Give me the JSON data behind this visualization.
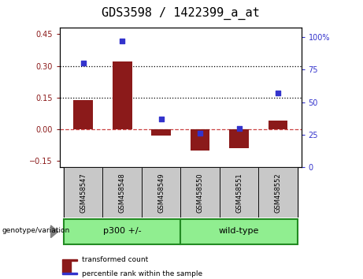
{
  "title": "GDS3598 / 1422399_a_at",
  "samples": [
    "GSM458547",
    "GSM458548",
    "GSM458549",
    "GSM458550",
    "GSM458551",
    "GSM458552"
  ],
  "transformed_count": [
    0.14,
    0.32,
    -0.03,
    -0.1,
    -0.09,
    0.04
  ],
  "percentile_rank": [
    80,
    97,
    37,
    26,
    30,
    57
  ],
  "group_border_color": "#228B22",
  "bar_color": "#8B1A1A",
  "scatter_color": "#3333CC",
  "dashed_zero_color": "#CC4444",
  "dotted_line_color": "#000000",
  "left_ylim": [
    -0.18,
    0.48
  ],
  "left_yticks": [
    -0.15,
    0.0,
    0.15,
    0.3,
    0.45
  ],
  "right_ylim": [
    0,
    107
  ],
  "right_yticks": [
    0,
    25,
    50,
    75,
    100
  ],
  "right_yticklabels": [
    "0",
    "25",
    "50",
    "75",
    "100%"
  ],
  "xlabel_area_color": "#C8C8C8",
  "group_color": "#90EE90",
  "genotype_label": "genotype/variation",
  "legend_items": [
    "transformed count",
    "percentile rank within the sample"
  ],
  "title_fontsize": 11,
  "group_labels": [
    "p300 +/-",
    "wild-type"
  ],
  "group_starts": [
    0,
    3
  ],
  "group_ends": [
    3,
    6
  ]
}
